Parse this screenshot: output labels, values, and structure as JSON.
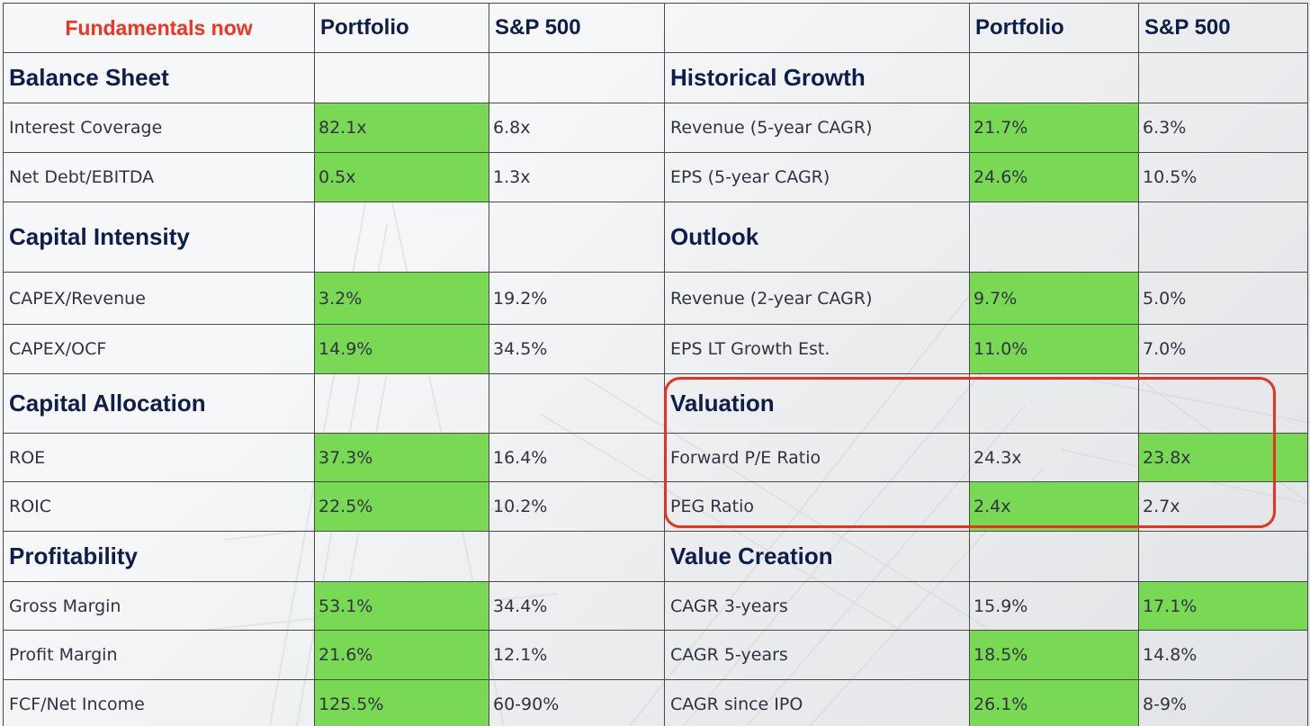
{
  "header": {
    "title": "Fundamentals now",
    "left_col1": "Portfolio",
    "left_col2": "S&P 500",
    "right_col1": "Portfolio",
    "right_col2": "S&P 500"
  },
  "rows": [
    {
      "type": "section",
      "left": "Balance Sheet",
      "right": "Historical Growth"
    },
    {
      "type": "data",
      "left": [
        "Interest Coverage",
        "82.1x",
        "6.8x"
      ],
      "left_green": "p",
      "right": [
        "Revenue (5-year CAGR)",
        "21.7%",
        "6.3%"
      ],
      "right_green": "p"
    },
    {
      "type": "data",
      "left": [
        "Net Debt/EBITDA",
        "0.5x",
        "1.3x"
      ],
      "left_green": "p",
      "right": [
        "EPS (5-year CAGR)",
        "24.6%",
        "10.5%"
      ],
      "right_green": "p"
    },
    {
      "type": "section",
      "left": "Capital Intensity",
      "right": "Outlook"
    },
    {
      "type": "data",
      "left": [
        "CAPEX/Revenue",
        "3.2%",
        "19.2%"
      ],
      "left_green": "p",
      "right": [
        "Revenue (2-year CAGR)",
        "9.7%",
        "5.0%"
      ],
      "right_green": "p"
    },
    {
      "type": "data",
      "left": [
        "CAPEX/OCF",
        "14.9%",
        "34.5%"
      ],
      "left_green": "p",
      "right": [
        "EPS LT Growth Est.",
        "11.0%",
        "7.0%"
      ],
      "right_green": "p"
    },
    {
      "type": "section",
      "left": "Capital Allocation",
      "right": "Valuation"
    },
    {
      "type": "data",
      "left": [
        "ROE",
        "37.3%",
        "16.4%"
      ],
      "left_green": "p",
      "right": [
        "Forward P/E Ratio",
        "24.3x",
        "23.8x"
      ],
      "right_green": "s"
    },
    {
      "type": "data",
      "left": [
        "ROIC",
        "22.5%",
        "10.2%"
      ],
      "left_green": "p",
      "right": [
        "PEG Ratio",
        "2.4x",
        "2.7x"
      ],
      "right_green": "p"
    },
    {
      "type": "section",
      "left": "Profitability",
      "right": "Value Creation"
    },
    {
      "type": "data",
      "left": [
        "Gross Margin",
        "53.1%",
        "34.4%"
      ],
      "left_green": "p",
      "right": [
        "CAGR 3-years",
        "15.9%",
        "17.1%"
      ],
      "right_green": "s"
    },
    {
      "type": "data",
      "left": [
        "Profit Margin",
        "21.6%",
        "12.1%"
      ],
      "left_green": "p",
      "right": [
        "CAGR 5-years",
        "18.5%",
        "14.8%"
      ],
      "right_green": "p"
    },
    {
      "type": "data",
      "left": [
        "FCF/Net Income",
        "125.5%",
        "60-90%"
      ],
      "left_green": "p",
      "right": [
        "CAGR since IPO",
        "26.1%",
        "8-9%"
      ],
      "right_green": "p"
    }
  ],
  "colors": {
    "highlight_green": "#7ad954",
    "title_red": "#f2331f",
    "heading_navy": "#0f1d4a",
    "callout_border": "#e8311f"
  }
}
